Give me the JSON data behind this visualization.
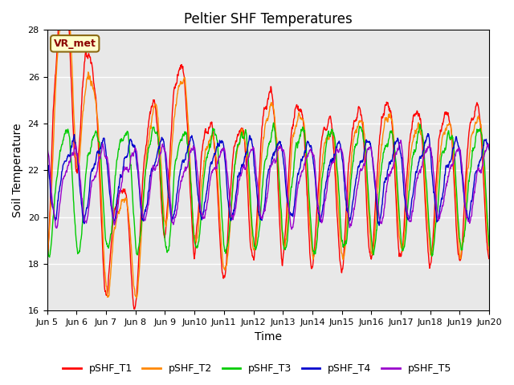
{
  "title": "Peltier SHF Temperatures",
  "xlabel": "Time",
  "ylabel": "Soil Temperature",
  "ylim": [
    16,
    28
  ],
  "yticks": [
    16,
    18,
    20,
    22,
    24,
    26,
    28
  ],
  "n_days": 15,
  "series_colors": [
    "#ff0000",
    "#ff8800",
    "#00cc00",
    "#0000cd",
    "#9900cc"
  ],
  "series_labels": [
    "pSHF_T1",
    "pSHF_T2",
    "pSHF_T3",
    "pSHF_T4",
    "pSHF_T5"
  ],
  "xtick_labels": [
    "Jun 5",
    "Jun 6",
    "Jun 7",
    "Jun 8",
    "Jun 9",
    "Jun 10",
    "Jun 11",
    "Jun 12",
    "Jun 13",
    "Jun 14",
    "Jun 15",
    "Jun 16",
    "Jun 17",
    "Jun 18",
    "Jun 19",
    "Jun 20"
  ],
  "vr_met_label": "VR_met",
  "bg_color": "#e8e8e8",
  "fig_bg": "#ffffff",
  "title_fontsize": 12,
  "axis_label_fontsize": 10,
  "tick_fontsize": 8,
  "legend_fontsize": 9
}
